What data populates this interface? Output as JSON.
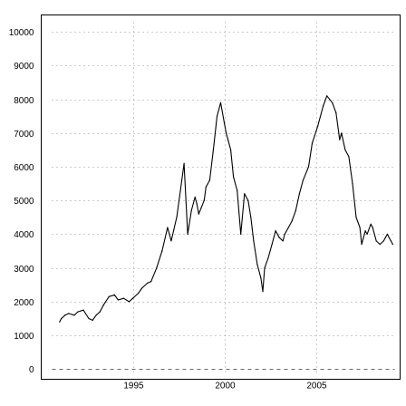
{
  "chart_data": {
    "type": "line",
    "title": "",
    "xlabel": "",
    "ylabel": "",
    "xlim": [
      1990.0,
      2009.6
    ],
    "ylim": [
      -300,
      10500
    ],
    "x_ticks": [
      1995,
      2000,
      2005
    ],
    "y_ticks": [
      0,
      1000,
      2000,
      3000,
      4000,
      5000,
      6000,
      7000,
      8000,
      9000,
      10000
    ],
    "grid": true,
    "zero_line": true,
    "colors": {
      "line": "#000000",
      "grid": "#9a9a9a",
      "frame": "#000000"
    },
    "series": [
      {
        "x": [
          1991.0,
          1991.1,
          1991.3,
          1991.5,
          1991.8,
          1992.0,
          1992.3,
          1992.6,
          1992.8,
          1993.0,
          1993.2,
          1993.4,
          1993.7,
          1994.0,
          1994.2,
          1994.5,
          1994.8,
          1995.0,
          1995.3,
          1995.5,
          1995.8,
          1996.0,
          1996.3,
          1996.6,
          1996.9,
          1997.1,
          1997.4,
          1997.6,
          1997.8,
          1998.0,
          1998.2,
          1998.4,
          1998.5,
          1998.6,
          1998.75,
          1998.9,
          1999.0,
          1999.2,
          1999.4,
          1999.6,
          1999.8,
          2000.0,
          2000.1,
          2000.2,
          2000.35,
          2000.5,
          2000.7,
          2000.9,
          2001.1,
          2001.3,
          2001.45,
          2001.6,
          2001.8,
          2002.0,
          2002.1,
          2002.2,
          2002.4,
          2002.6,
          2002.8,
          2003.0,
          2003.2,
          2003.3,
          2003.5,
          2003.7,
          2003.9,
          2004.1,
          2004.3,
          2004.6,
          2004.8,
          2005.1,
          2005.4,
          2005.6,
          2005.9,
          2006.1,
          2006.3,
          2006.4,
          2006.6,
          2006.8,
          2007.0,
          2007.2,
          2007.4,
          2007.5,
          2007.7,
          2007.8,
          2008.0,
          2008.1,
          2008.3,
          2008.5,
          2008.7,
          2008.8,
          2008.9,
          2009.0,
          2009.1,
          2009.2
        ],
        "y": [
          1400,
          1500,
          1600,
          1650,
          1600,
          1700,
          1750,
          1500,
          1450,
          1600,
          1700,
          1900,
          2150,
          2200,
          2050,
          2100,
          2000,
          2100,
          2250,
          2400,
          2550,
          2600,
          3000,
          3500,
          4200,
          3800,
          4500,
          5300,
          6100,
          4000,
          4700,
          5100,
          4900,
          4600,
          4800,
          5000,
          5400,
          5600,
          6500,
          7500,
          7900,
          7300,
          7000,
          6800,
          6500,
          5700,
          5300,
          4000,
          5200,
          5000,
          4500,
          3800,
          3100,
          2700,
          2300,
          3000,
          3300,
          3700,
          4100,
          3900,
          3800,
          4000,
          4200,
          4400,
          4700,
          5200,
          5600,
          6000,
          6700,
          7200,
          7800,
          8100,
          7900,
          7600,
          6800,
          7000,
          6500,
          6300,
          5500,
          4500,
          4200,
          3700,
          4100,
          4000,
          4300,
          4200,
          3800,
          3700,
          3800,
          3900,
          4000,
          3900,
          3800,
          3700
        ]
      }
    ]
  }
}
